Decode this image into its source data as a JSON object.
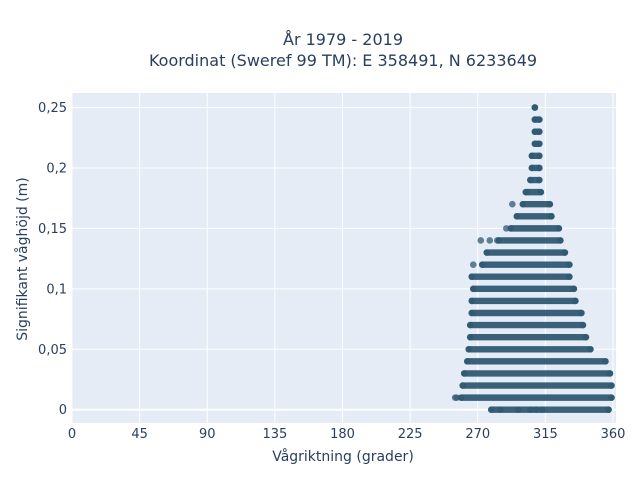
{
  "chart_data": {
    "type": "scatter",
    "title_line1": "År 1979 - 2019",
    "title_line2": "Koordinat (Sweref 99 TM): E 358491, N 6233649",
    "xlabel": "Vågriktning (grader)",
    "ylabel": "Signifikant våghöjd (m)",
    "xlim": [
      0,
      362
    ],
    "ylim": [
      -0.011,
      0.262
    ],
    "x_ticks": [
      0,
      45,
      90,
      135,
      180,
      225,
      270,
      315,
      360
    ],
    "x_tick_labels": [
      "0",
      "45",
      "90",
      "135",
      "180",
      "225",
      "270",
      "315",
      "360"
    ],
    "y_ticks": [
      0,
      0.05,
      0.1,
      0.15,
      0.2,
      0.25
    ],
    "y_tick_labels": [
      "0",
      "0,05",
      "0,1",
      "0,15",
      "0,2",
      "0,25"
    ],
    "grid": true,
    "point_color": "#2f5a73",
    "background_color": "#e5ecf6",
    "bands": [
      {
        "y": 0.0,
        "x_min": 279,
        "x_max": 357
      },
      {
        "y": 0.01,
        "x_min": 259,
        "x_max": 359
      },
      {
        "y": 0.02,
        "x_min": 260,
        "x_max": 359
      },
      {
        "y": 0.03,
        "x_min": 261,
        "x_max": 358
      },
      {
        "y": 0.04,
        "x_min": 263,
        "x_max": 355
      },
      {
        "y": 0.05,
        "x_min": 264,
        "x_max": 345
      },
      {
        "y": 0.06,
        "x_min": 265,
        "x_max": 342
      },
      {
        "y": 0.07,
        "x_min": 265,
        "x_max": 340
      },
      {
        "y": 0.08,
        "x_min": 266,
        "x_max": 339
      },
      {
        "y": 0.09,
        "x_min": 266,
        "x_max": 335
      },
      {
        "y": 0.1,
        "x_min": 267,
        "x_max": 334
      },
      {
        "y": 0.11,
        "x_min": 266,
        "x_max": 331
      },
      {
        "y": 0.12,
        "x_min": 273,
        "x_max": 331
      },
      {
        "y": 0.13,
        "x_min": 276,
        "x_max": 328
      },
      {
        "y": 0.14,
        "x_min": 284,
        "x_max": 325
      },
      {
        "y": 0.15,
        "x_min": 292,
        "x_max": 324
      },
      {
        "y": 0.16,
        "x_min": 296,
        "x_max": 319
      },
      {
        "y": 0.17,
        "x_min": 300,
        "x_max": 318
      },
      {
        "y": 0.18,
        "x_min": 302,
        "x_max": 312
      },
      {
        "y": 0.19,
        "x_min": 305,
        "x_max": 311
      },
      {
        "y": 0.2,
        "x_min": 306,
        "x_max": 311
      },
      {
        "y": 0.21,
        "x_min": 306,
        "x_max": 311
      },
      {
        "y": 0.22,
        "x_min": 308,
        "x_max": 311
      },
      {
        "y": 0.23,
        "x_min": 308,
        "x_max": 311
      },
      {
        "y": 0.24,
        "x_min": 308,
        "x_max": 311
      },
      {
        "y": 0.25,
        "x_min": 308,
        "x_max": 308
      }
    ],
    "outliers": [
      {
        "x": 255,
        "y": 0.01
      },
      {
        "x": 256,
        "y": 0.01
      },
      {
        "x": 267,
        "y": 0.12
      },
      {
        "x": 272,
        "y": 0.14
      },
      {
        "x": 278,
        "y": 0.14
      },
      {
        "x": 283,
        "y": 0.14
      },
      {
        "x": 289,
        "y": 0.15
      },
      {
        "x": 293,
        "y": 0.17
      },
      {
        "x": 319,
        "y": 0.16
      },
      {
        "x": 285,
        "y": 0.0
      },
      {
        "x": 297,
        "y": 0.0
      },
      {
        "x": 305,
        "y": 0.0
      },
      {
        "x": 309,
        "y": 0.0
      },
      {
        "x": 313,
        "y": 0.0
      },
      {
        "x": 357,
        "y": 0.0
      }
    ]
  }
}
